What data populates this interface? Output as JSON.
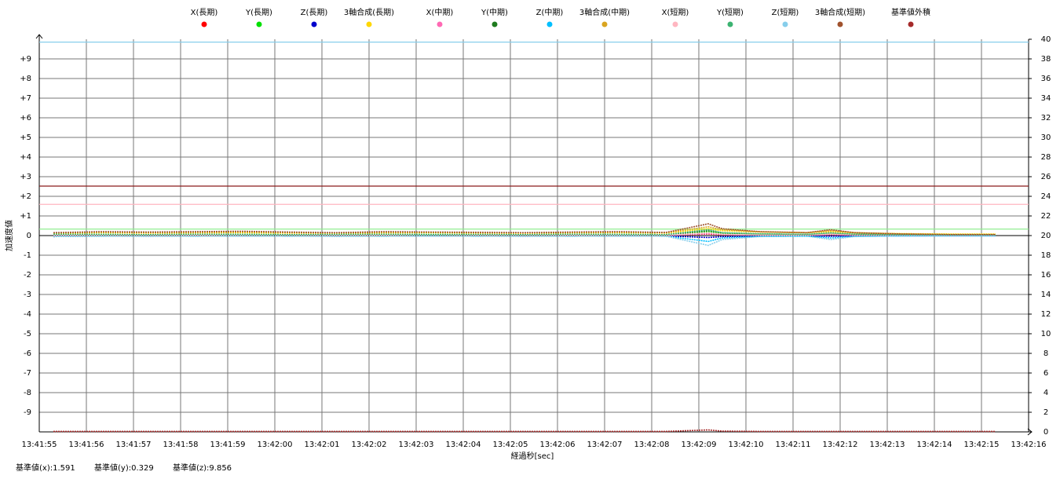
{
  "chart_data": {
    "type": "line",
    "y_label": "加速度値",
    "x_label": "経過秒[sec]",
    "xlim": [
      0,
      21
    ],
    "xticks": [
      {
        "value": 0,
        "label": "13:41:55"
      },
      {
        "value": 1,
        "label": "13:41:56"
      },
      {
        "value": 2,
        "label": "13:41:57"
      },
      {
        "value": 3,
        "label": "13:41:58"
      },
      {
        "value": 4,
        "label": "13:41:59"
      },
      {
        "value": 5,
        "label": "13:42:00"
      },
      {
        "value": 6,
        "label": "13:42:01"
      },
      {
        "value": 7,
        "label": "13:42:02"
      },
      {
        "value": 8,
        "label": "13:42:03"
      },
      {
        "value": 9,
        "label": "13:42:04"
      },
      {
        "value": 10,
        "label": "13:42:05"
      },
      {
        "value": 11,
        "label": "13:42:06"
      },
      {
        "value": 12,
        "label": "13:42:07"
      },
      {
        "value": 13,
        "label": "13:42:08"
      },
      {
        "value": 14,
        "label": "13:42:09"
      },
      {
        "value": 15,
        "label": "13:42:10"
      },
      {
        "value": 16,
        "label": "13:42:11"
      },
      {
        "value": 17,
        "label": "13:42:12"
      },
      {
        "value": 18,
        "label": "13:42:13"
      },
      {
        "value": 19,
        "label": "13:42:14"
      },
      {
        "value": 20,
        "label": "13:42:15"
      },
      {
        "value": 21,
        "label": "13:42:16"
      }
    ],
    "ylim": [
      -10,
      10
    ],
    "yticks": [
      -9,
      -8,
      -7,
      -6,
      -5,
      -4,
      -3,
      -2,
      -1,
      0,
      {
        "value": 1,
        "label": "+1"
      },
      {
        "value": 2,
        "label": "+2"
      },
      {
        "value": 3,
        "label": "+3"
      },
      {
        "value": 4,
        "label": "+4"
      },
      {
        "value": 5,
        "label": "+5"
      },
      {
        "value": 6,
        "label": "+6"
      },
      {
        "value": 7,
        "label": "+7"
      },
      {
        "value": 8,
        "label": "+8"
      },
      {
        "value": 9,
        "label": "+9"
      }
    ],
    "y2lim": [
      0,
      40
    ],
    "y2ticks": [
      0,
      2,
      4,
      6,
      8,
      10,
      12,
      14,
      16,
      18,
      20,
      22,
      24,
      26,
      28,
      30,
      32,
      34,
      36,
      38,
      40
    ],
    "grid": true,
    "reference_lines": [
      {
        "label": "基準値(x):1.591",
        "value": 1.591,
        "color": "#ffb6c1"
      },
      {
        "label": "基準値(y):0.329",
        "value": 0.329,
        "color": "#90ee90"
      },
      {
        "label": "基準値(z):9.856",
        "value": 9.856,
        "color": "#87ceeb"
      },
      {
        "value": 2.52,
        "color": "#8b1a1a"
      }
    ],
    "x": [
      0.3,
      1.3,
      2.3,
      3.3,
      4.3,
      5.3,
      6.3,
      7.3,
      8.3,
      9.3,
      10.3,
      11.3,
      12.3,
      13.3,
      14.2,
      14.5,
      15.3,
      16.3,
      16.8,
      17.3,
      18.3,
      19.3,
      20.3
    ],
    "series": [
      {
        "name": "X(長期)",
        "color": "#ff0000",
        "values": [
          0.01,
          0.02,
          0,
          0.01,
          0.02,
          0.01,
          0,
          0.01,
          0.02,
          0.01,
          0,
          0.01,
          0.02,
          0.01,
          0.08,
          0.04,
          0.02,
          0.01,
          0.05,
          0.02,
          0.01,
          0,
          0
        ]
      },
      {
        "name": "Y(長期)",
        "color": "#00e000",
        "values": [
          0.05,
          0.06,
          0.04,
          0.05,
          0.06,
          0.05,
          0.04,
          0.05,
          0.06,
          0.05,
          0.04,
          0.05,
          0.06,
          0.05,
          0.2,
          0.12,
          0.08,
          0.06,
          0.1,
          0.06,
          0.04,
          0.03,
          0.03
        ]
      },
      {
        "name": "Z(長期)",
        "color": "#0000cc",
        "values": [
          -0.05,
          -0.02,
          -0.03,
          -0.02,
          -0.01,
          -0.02,
          -0.03,
          -0.02,
          -0.01,
          -0.02,
          -0.03,
          -0.02,
          -0.01,
          -0.02,
          -0.1,
          -0.05,
          -0.03,
          -0.02,
          -0.03,
          -0.02,
          -0.01,
          -0.01,
          -0.01
        ]
      },
      {
        "name": "3軸合成(長期)",
        "color": "#ffd700",
        "values": [
          0.12,
          0.15,
          0.13,
          0.14,
          0.15,
          0.13,
          0.12,
          0.14,
          0.15,
          0.13,
          0.12,
          0.14,
          0.15,
          0.13,
          0.35,
          0.25,
          0.18,
          0.15,
          0.2,
          0.14,
          0.1,
          0.08,
          0.08
        ]
      },
      {
        "name": "X(中期)",
        "color": "#ff69b4",
        "values": [
          0.02,
          0.01,
          0.01,
          0.02,
          0.01,
          0,
          0.01,
          0.02,
          0.01,
          0,
          0.01,
          0.02,
          0.01,
          0,
          0.1,
          0.05,
          0.02,
          0.01,
          0.06,
          0.02,
          0.01,
          0,
          0
        ]
      },
      {
        "name": "Y(中期)",
        "color": "#1e7b1e",
        "values": [
          0.06,
          0.05,
          0.05,
          0.06,
          0.05,
          0.04,
          0.05,
          0.06,
          0.05,
          0.04,
          0.05,
          0.06,
          0.05,
          0.04,
          0.25,
          0.14,
          0.08,
          0.06,
          0.12,
          0.06,
          0.04,
          0.03,
          0.03
        ]
      },
      {
        "name": "Z(中期)",
        "color": "#00bfff",
        "values": [
          -0.04,
          -0.03,
          -0.02,
          -0.03,
          -0.02,
          -0.03,
          -0.02,
          -0.03,
          -0.02,
          -0.03,
          -0.02,
          -0.03,
          -0.02,
          -0.03,
          -0.3,
          -0.12,
          -0.04,
          -0.03,
          -0.12,
          -0.04,
          -0.02,
          -0.01,
          -0.01
        ]
      },
      {
        "name": "3軸合成(中期)",
        "color": "#daa520",
        "values": [
          0.14,
          0.17,
          0.15,
          0.16,
          0.18,
          0.15,
          0.14,
          0.16,
          0.17,
          0.15,
          0.14,
          0.16,
          0.17,
          0.15,
          0.45,
          0.3,
          0.19,
          0.15,
          0.25,
          0.15,
          0.09,
          0.06,
          0.06
        ]
      },
      {
        "name": "X(短期)",
        "color": "#ffb6c1",
        "values": [
          0.03,
          0.02,
          0.01,
          0.03,
          0.02,
          0.01,
          0.02,
          0.03,
          0.01,
          0.02,
          0.01,
          0.03,
          0.02,
          0.01,
          0.15,
          0.06,
          0.03,
          0.02,
          0.08,
          0.03,
          0.01,
          0,
          0
        ]
      },
      {
        "name": "Y(短期)",
        "color": "#3cb371",
        "values": [
          0.07,
          0.06,
          0.05,
          0.07,
          0.06,
          0.05,
          0.06,
          0.07,
          0.05,
          0.06,
          0.05,
          0.07,
          0.06,
          0.05,
          0.3,
          0.15,
          0.09,
          0.06,
          0.14,
          0.07,
          0.04,
          0.03,
          0.02
        ]
      },
      {
        "name": "Z(短期)",
        "color": "#87ceeb",
        "values": [
          -0.05,
          -0.03,
          -0.04,
          -0.03,
          -0.02,
          -0.03,
          -0.04,
          -0.03,
          -0.02,
          -0.03,
          -0.04,
          -0.03,
          -0.02,
          -0.03,
          -0.5,
          -0.2,
          -0.05,
          -0.03,
          -0.2,
          -0.05,
          -0.02,
          -0.01,
          -0.01
        ]
      },
      {
        "name": "3軸合成(短期)",
        "color": "#a0522d",
        "values": [
          0.15,
          0.2,
          0.18,
          0.2,
          0.22,
          0.18,
          0.15,
          0.2,
          0.18,
          0.17,
          0.15,
          0.18,
          0.2,
          0.16,
          0.6,
          0.35,
          0.2,
          0.15,
          0.3,
          0.15,
          0.08,
          0.05,
          0.05
        ]
      },
      {
        "name": "基準値外積",
        "color": "#a52a2a",
        "axis": "y2",
        "values": [
          0.05,
          0.05,
          0.05,
          0.05,
          0.05,
          0.05,
          0.05,
          0.05,
          0.05,
          0.05,
          0.05,
          0.05,
          0.05,
          0.05,
          0.2,
          0.08,
          0.05,
          0.05,
          0.05,
          0.05,
          0.05,
          0.05,
          0.05
        ]
      }
    ]
  }
}
